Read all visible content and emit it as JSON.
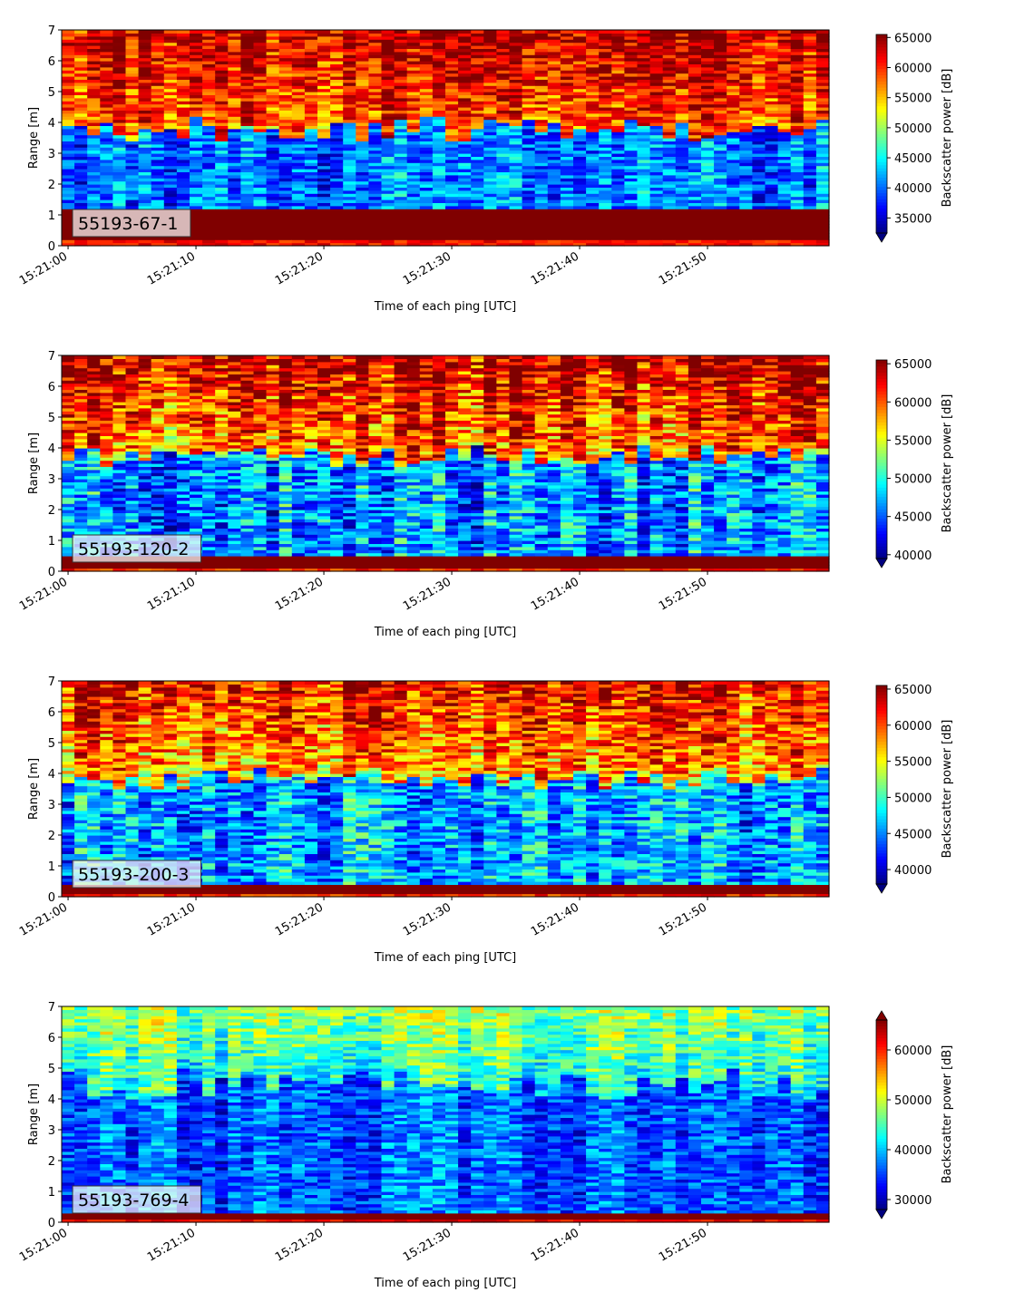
{
  "chart_data": [
    {
      "type": "heatmap",
      "annotation": "55193-67-1",
      "xlabel": "Time of each ping [UTC]",
      "ylabel": "Range [m]",
      "xticks": [
        "15:21:00",
        "15:21:10",
        "15:21:20",
        "15:21:30",
        "15:21:40",
        "15:21:50"
      ],
      "xlim_seconds": [
        -0.5,
        59.5
      ],
      "yticks": [
        0,
        1,
        2,
        3,
        4,
        5,
        6,
        7
      ],
      "ylim": [
        0,
        7
      ],
      "colormap": "jet",
      "colorbar": {
        "label": "Backscatter power [dB]",
        "ticks": [
          35000,
          40000,
          45000,
          50000,
          55000,
          60000,
          65000
        ],
        "range": [
          32500,
          65500
        ],
        "extend": "min"
      },
      "profile": {
        "bottom_band": [
          0.2,
          1.15
        ],
        "low_layer_top_range": [
          3.4,
          4.2
        ],
        "low_layer_value": 40500,
        "high_layer_value": 58500
      }
    },
    {
      "type": "heatmap",
      "annotation": "55193-120-2",
      "xlabel": "Time of each ping [UTC]",
      "ylabel": "Range [m]",
      "xticks": [
        "15:21:00",
        "15:21:10",
        "15:21:20",
        "15:21:30",
        "15:21:40",
        "15:21:50"
      ],
      "xlim_seconds": [
        -0.5,
        59.5
      ],
      "yticks": [
        0,
        1,
        2,
        3,
        4,
        5,
        6,
        7
      ],
      "ylim": [
        0,
        7
      ],
      "colormap": "jet",
      "colorbar": {
        "label": "Backscatter power [dB]",
        "ticks": [
          40000,
          45000,
          50000,
          55000,
          60000,
          65000
        ],
        "range": [
          39500,
          65500
        ],
        "extend": "min"
      },
      "profile": {
        "bottom_band": [
          0.15,
          0.5
        ],
        "low_layer_top_range": [
          3.4,
          4.1
        ],
        "low_layer_value": 46500,
        "high_layer_value": 59000
      }
    },
    {
      "type": "heatmap",
      "annotation": "55193-200-3",
      "xlabel": "Time of each ping [UTC]",
      "ylabel": "Range [m]",
      "xticks": [
        "15:21:00",
        "15:21:10",
        "15:21:20",
        "15:21:30",
        "15:21:40",
        "15:21:50"
      ],
      "xlim_seconds": [
        -0.5,
        59.5
      ],
      "yticks": [
        0,
        1,
        2,
        3,
        4,
        5,
        6,
        7
      ],
      "ylim": [
        0,
        7
      ],
      "colormap": "jet",
      "colorbar": {
        "label": "Backscatter power [dB]",
        "ticks": [
          40000,
          45000,
          50000,
          55000,
          60000,
          65000
        ],
        "range": [
          38000,
          65500
        ],
        "extend": "min"
      },
      "profile": {
        "bottom_band": [
          0.15,
          0.4
        ],
        "low_layer_top_range": [
          3.5,
          4.2
        ],
        "low_layer_value": 46000,
        "high_layer_value": 57500
      }
    },
    {
      "type": "heatmap",
      "annotation": "55193-769-4",
      "xlabel": "Time of each ping [UTC]",
      "ylabel": "Range [m]",
      "xticks": [
        "15:21:00",
        "15:21:10",
        "15:21:20",
        "15:21:30",
        "15:21:40",
        "15:21:50"
      ],
      "xlim_seconds": [
        -0.5,
        59.5
      ],
      "yticks": [
        0,
        1,
        2,
        3,
        4,
        5,
        6,
        7
      ],
      "ylim": [
        0,
        7
      ],
      "colormap": "jet",
      "colorbar": {
        "label": "Backscatter power [dB]",
        "ticks": [
          30000,
          40000,
          50000,
          60000
        ],
        "range": [
          28000,
          66000
        ],
        "extend": "both"
      },
      "profile": {
        "bottom_band": [
          0.1,
          0.3
        ],
        "low_layer_top_range": [
          4.0,
          5.0
        ],
        "low_layer_value": 36000,
        "high_layer_value": 43000
      }
    }
  ]
}
